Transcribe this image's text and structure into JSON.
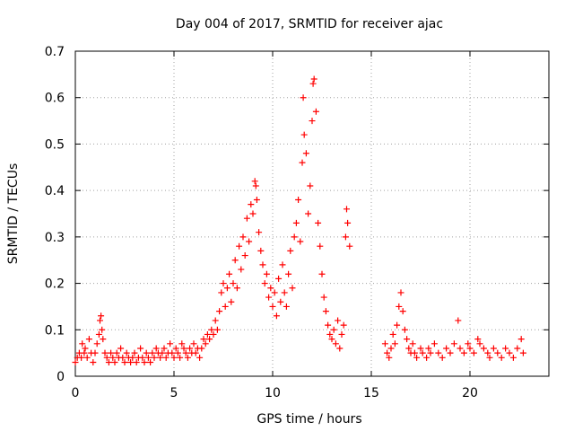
{
  "chart_data": {
    "type": "scatter",
    "title": "Day 004 of 2017, SRMTID for receiver ajac",
    "xlabel": "GPS time / hours",
    "ylabel": "SRMTID / TECUs",
    "xlim": [
      0,
      24
    ],
    "ylim": [
      0,
      0.7
    ],
    "xticks": [
      0,
      5,
      10,
      15,
      20
    ],
    "yticks": [
      0,
      0.1,
      0.2,
      0.3,
      0.4,
      0.5,
      0.6,
      0.7
    ],
    "xtick_labels": [
      "0",
      "5",
      "10",
      "15",
      "20"
    ],
    "ytick_labels": [
      "0",
      "0.1",
      "0.2",
      "0.3",
      "0.4",
      "0.5",
      "0.6",
      "0.7"
    ],
    "grid": true,
    "marker": "+",
    "color": "#ff0000",
    "series": [
      {
        "name": "SRMTID",
        "points": [
          [
            0.0,
            0.03
          ],
          [
            0.1,
            0.04
          ],
          [
            0.2,
            0.05
          ],
          [
            0.3,
            0.04
          ],
          [
            0.35,
            0.07
          ],
          [
            0.45,
            0.05
          ],
          [
            0.5,
            0.06
          ],
          [
            0.6,
            0.04
          ],
          [
            0.7,
            0.08
          ],
          [
            0.8,
            0.05
          ],
          [
            0.9,
            0.03
          ],
          [
            1.0,
            0.05
          ],
          [
            1.1,
            0.07
          ],
          [
            1.2,
            0.09
          ],
          [
            1.25,
            0.12
          ],
          [
            1.3,
            0.13
          ],
          [
            1.35,
            0.1
          ],
          [
            1.4,
            0.08
          ],
          [
            1.5,
            0.05
          ],
          [
            1.6,
            0.04
          ],
          [
            1.7,
            0.03
          ],
          [
            1.8,
            0.05
          ],
          [
            1.9,
            0.04
          ],
          [
            2.0,
            0.03
          ],
          [
            2.1,
            0.05
          ],
          [
            2.2,
            0.04
          ],
          [
            2.3,
            0.06
          ],
          [
            2.4,
            0.04
          ],
          [
            2.5,
            0.03
          ],
          [
            2.6,
            0.05
          ],
          [
            2.7,
            0.04
          ],
          [
            2.8,
            0.03
          ],
          [
            2.9,
            0.04
          ],
          [
            3.0,
            0.05
          ],
          [
            3.1,
            0.03
          ],
          [
            3.2,
            0.04
          ],
          [
            3.3,
            0.06
          ],
          [
            3.4,
            0.04
          ],
          [
            3.5,
            0.03
          ],
          [
            3.6,
            0.05
          ],
          [
            3.7,
            0.04
          ],
          [
            3.8,
            0.03
          ],
          [
            3.9,
            0.05
          ],
          [
            4.0,
            0.04
          ],
          [
            4.1,
            0.06
          ],
          [
            4.2,
            0.05
          ],
          [
            4.3,
            0.04
          ],
          [
            4.4,
            0.05
          ],
          [
            4.5,
            0.06
          ],
          [
            4.6,
            0.04
          ],
          [
            4.7,
            0.05
          ],
          [
            4.8,
            0.07
          ],
          [
            4.9,
            0.05
          ],
          [
            5.0,
            0.04
          ],
          [
            5.1,
            0.06
          ],
          [
            5.2,
            0.05
          ],
          [
            5.3,
            0.04
          ],
          [
            5.4,
            0.07
          ],
          [
            5.5,
            0.06
          ],
          [
            5.6,
            0.05
          ],
          [
            5.7,
            0.04
          ],
          [
            5.8,
            0.06
          ],
          [
            5.9,
            0.05
          ],
          [
            6.0,
            0.07
          ],
          [
            6.1,
            0.05
          ],
          [
            6.2,
            0.06
          ],
          [
            6.3,
            0.04
          ],
          [
            6.4,
            0.06
          ],
          [
            6.5,
            0.08
          ],
          [
            6.6,
            0.07
          ],
          [
            6.7,
            0.09
          ],
          [
            6.8,
            0.08
          ],
          [
            6.9,
            0.1
          ],
          [
            7.0,
            0.09
          ],
          [
            7.1,
            0.12
          ],
          [
            7.2,
            0.1
          ],
          [
            7.3,
            0.14
          ],
          [
            7.4,
            0.18
          ],
          [
            7.5,
            0.2
          ],
          [
            7.6,
            0.15
          ],
          [
            7.7,
            0.19
          ],
          [
            7.8,
            0.22
          ],
          [
            7.9,
            0.16
          ],
          [
            8.0,
            0.2
          ],
          [
            8.1,
            0.25
          ],
          [
            8.2,
            0.19
          ],
          [
            8.3,
            0.28
          ],
          [
            8.4,
            0.23
          ],
          [
            8.5,
            0.3
          ],
          [
            8.6,
            0.26
          ],
          [
            8.7,
            0.34
          ],
          [
            8.8,
            0.29
          ],
          [
            8.9,
            0.37
          ],
          [
            9.0,
            0.35
          ],
          [
            9.1,
            0.42
          ],
          [
            9.15,
            0.41
          ],
          [
            9.2,
            0.38
          ],
          [
            9.3,
            0.31
          ],
          [
            9.4,
            0.27
          ],
          [
            9.5,
            0.24
          ],
          [
            9.6,
            0.2
          ],
          [
            9.7,
            0.22
          ],
          [
            9.8,
            0.17
          ],
          [
            9.9,
            0.19
          ],
          [
            10.0,
            0.15
          ],
          [
            10.1,
            0.18
          ],
          [
            10.2,
            0.13
          ],
          [
            10.3,
            0.21
          ],
          [
            10.4,
            0.16
          ],
          [
            10.5,
            0.24
          ],
          [
            10.6,
            0.18
          ],
          [
            10.7,
            0.15
          ],
          [
            10.8,
            0.22
          ],
          [
            10.9,
            0.27
          ],
          [
            11.0,
            0.19
          ],
          [
            11.1,
            0.3
          ],
          [
            11.2,
            0.33
          ],
          [
            11.3,
            0.38
          ],
          [
            11.4,
            0.29
          ],
          [
            11.5,
            0.46
          ],
          [
            11.55,
            0.6
          ],
          [
            11.6,
            0.52
          ],
          [
            11.7,
            0.48
          ],
          [
            11.8,
            0.35
          ],
          [
            11.9,
            0.41
          ],
          [
            12.0,
            0.55
          ],
          [
            12.05,
            0.63
          ],
          [
            12.1,
            0.64
          ],
          [
            12.2,
            0.57
          ],
          [
            12.3,
            0.33
          ],
          [
            12.4,
            0.28
          ],
          [
            12.5,
            0.22
          ],
          [
            12.6,
            0.17
          ],
          [
            12.7,
            0.14
          ],
          [
            12.8,
            0.11
          ],
          [
            12.9,
            0.09
          ],
          [
            13.0,
            0.08
          ],
          [
            13.1,
            0.1
          ],
          [
            13.2,
            0.07
          ],
          [
            13.3,
            0.12
          ],
          [
            13.4,
            0.06
          ],
          [
            13.5,
            0.09
          ],
          [
            13.6,
            0.11
          ],
          [
            13.7,
            0.3
          ],
          [
            13.75,
            0.36
          ],
          [
            13.8,
            0.33
          ],
          [
            13.9,
            0.28
          ],
          [
            15.7,
            0.07
          ],
          [
            15.8,
            0.05
          ],
          [
            15.9,
            0.04
          ],
          [
            16.0,
            0.06
          ],
          [
            16.1,
            0.09
          ],
          [
            16.2,
            0.07
          ],
          [
            16.3,
            0.11
          ],
          [
            16.4,
            0.15
          ],
          [
            16.5,
            0.18
          ],
          [
            16.6,
            0.14
          ],
          [
            16.7,
            0.1
          ],
          [
            16.8,
            0.08
          ],
          [
            16.9,
            0.06
          ],
          [
            17.0,
            0.05
          ],
          [
            17.1,
            0.07
          ],
          [
            17.2,
            0.05
          ],
          [
            17.3,
            0.04
          ],
          [
            17.5,
            0.06
          ],
          [
            17.6,
            0.05
          ],
          [
            17.8,
            0.04
          ],
          [
            17.9,
            0.06
          ],
          [
            18.0,
            0.05
          ],
          [
            18.2,
            0.07
          ],
          [
            18.4,
            0.05
          ],
          [
            18.6,
            0.04
          ],
          [
            18.8,
            0.06
          ],
          [
            19.0,
            0.05
          ],
          [
            19.2,
            0.07
          ],
          [
            19.4,
            0.12
          ],
          [
            19.5,
            0.06
          ],
          [
            19.7,
            0.05
          ],
          [
            19.9,
            0.07
          ],
          [
            20.0,
            0.06
          ],
          [
            20.2,
            0.05
          ],
          [
            20.4,
            0.08
          ],
          [
            20.5,
            0.07
          ],
          [
            20.7,
            0.06
          ],
          [
            20.9,
            0.05
          ],
          [
            21.0,
            0.04
          ],
          [
            21.2,
            0.06
          ],
          [
            21.4,
            0.05
          ],
          [
            21.6,
            0.04
          ],
          [
            21.8,
            0.06
          ],
          [
            22.0,
            0.05
          ],
          [
            22.2,
            0.04
          ],
          [
            22.4,
            0.06
          ],
          [
            22.6,
            0.08
          ],
          [
            22.7,
            0.05
          ]
        ]
      }
    ]
  }
}
